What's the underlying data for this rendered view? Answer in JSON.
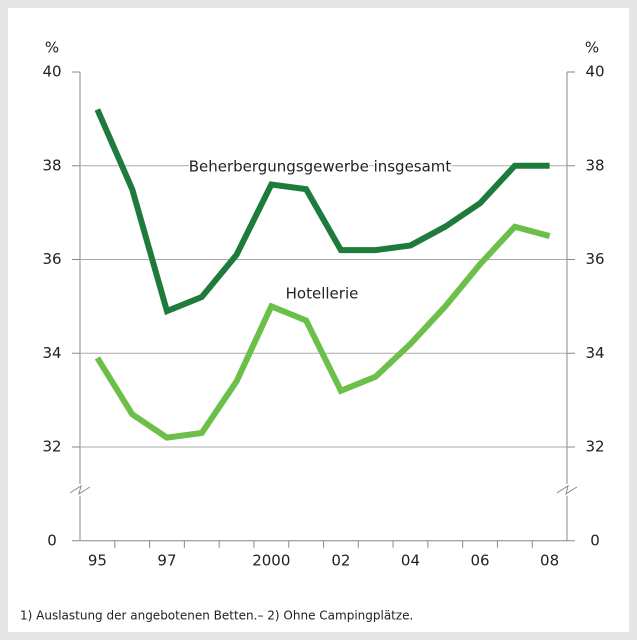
{
  "chart_data": {
    "type": "line",
    "categories": [
      "95",
      null,
      "97",
      null,
      null,
      "2000",
      null,
      "02",
      null,
      "04",
      null,
      "06",
      null,
      "08"
    ],
    "series": [
      {
        "name": "Beherbergungsgewerbe insgesamt",
        "color": "#1e7b3c",
        "values": [
          39.2,
          37.5,
          34.9,
          35.2,
          36.1,
          37.6,
          37.5,
          36.2,
          36.2,
          36.3,
          36.7,
          37.2,
          38.0,
          38.0
        ]
      },
      {
        "name": "Hotellerie",
        "color": "#6cc04a",
        "values": [
          33.9,
          32.7,
          32.2,
          32.3,
          33.4,
          35.0,
          34.7,
          33.2,
          33.5,
          34.2,
          35.0,
          35.9,
          36.7,
          36.5
        ]
      }
    ],
    "y_unit": "%",
    "y2_unit": "%",
    "ylim": [
      32,
      40
    ],
    "yticks": [
      0,
      32,
      34,
      36,
      38,
      40
    ],
    "y2lim": [
      32,
      40
    ],
    "y2ticks": [
      0,
      32,
      34,
      36,
      38,
      40
    ],
    "axis_break": true,
    "grid": true,
    "footnote": "1) Auslastung der angebotenen Betten.– 2) Ohne Campingplätze."
  }
}
